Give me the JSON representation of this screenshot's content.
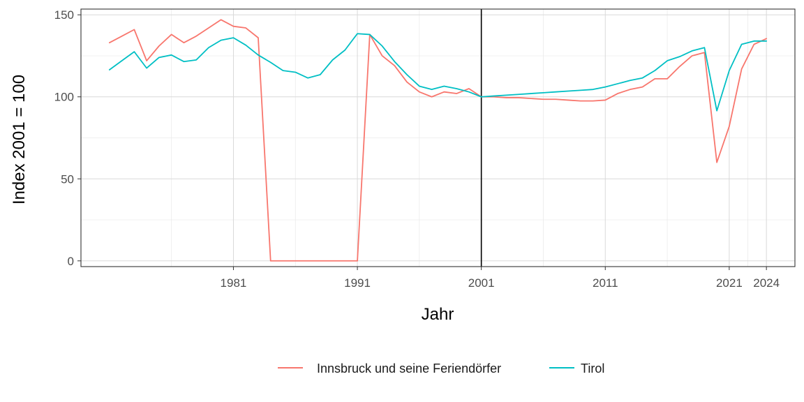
{
  "chart_data": {
    "type": "line",
    "xlabel": "Jahr",
    "ylabel": "Index 2001 = 100",
    "xlim": [
      1968.7,
      2026.3
    ],
    "ylim": [
      -3.5,
      153.5
    ],
    "x_ticks": [
      1981,
      1991,
      2001,
      2011,
      2021,
      2024
    ],
    "y_ticks": [
      0,
      50,
      100,
      150
    ],
    "x_minor_ticks": [
      1976,
      1986,
      1996,
      2006,
      2016,
      2022.5
    ],
    "y_minor_ticks": [
      25,
      75,
      125
    ],
    "grid": true,
    "legend_position": "bottom",
    "reference_line_x": 2001,
    "colors": {
      "Innsbruck und seine Feriendörfer": "#F8766D",
      "Tirol": "#00BFC4",
      "reference_line": "#000000",
      "panel_border": "#333333"
    },
    "series": [
      {
        "name": "Innsbruck und seine Feriendörfer",
        "color": "#F8766D",
        "x": [
          1971,
          1972,
          1973,
          1974,
          1975,
          1976,
          1977,
          1978,
          1979,
          1980,
          1981,
          1982,
          1983,
          1984,
          1985,
          1986,
          1987,
          1988,
          1989,
          1990,
          1991,
          1992,
          1993,
          1994,
          1995,
          1996,
          1997,
          1998,
          1999,
          2000,
          2001,
          2002,
          2003,
          2004,
          2005,
          2006,
          2007,
          2008,
          2009,
          2010,
          2011,
          2012,
          2013,
          2014,
          2015,
          2016,
          2017,
          2018,
          2019,
          2020,
          2021,
          2022,
          2023,
          2024
        ],
        "y": [
          133,
          137,
          141,
          122,
          131,
          138,
          133,
          137,
          142,
          147,
          143,
          142,
          136,
          0,
          0,
          0,
          0,
          0,
          0,
          0,
          0,
          138,
          125,
          119,
          109,
          103,
          100,
          103,
          102,
          105,
          100,
          100,
          99.5,
          99.5,
          99,
          98.5,
          98.5,
          98,
          97.5,
          97.5,
          98,
          102,
          104.5,
          106,
          111,
          111,
          118.5,
          125,
          127,
          60,
          82,
          117,
          132,
          135.5
        ]
      },
      {
        "name": "Tirol",
        "color": "#00BFC4",
        "x": [
          1971,
          1972,
          1973,
          1974,
          1975,
          1976,
          1977,
          1978,
          1979,
          1980,
          1981,
          1982,
          1983,
          1984,
          1985,
          1986,
          1987,
          1988,
          1989,
          1990,
          1991,
          1992,
          1993,
          1994,
          1995,
          1996,
          1997,
          1998,
          1999,
          2000,
          2001,
          2002,
          2003,
          2004,
          2005,
          2006,
          2007,
          2008,
          2009,
          2010,
          2011,
          2012,
          2013,
          2014,
          2015,
          2016,
          2017,
          2018,
          2019,
          2020,
          2021,
          2022,
          2023,
          2024
        ],
        "y": [
          116.5,
          122,
          127.5,
          117.5,
          124,
          125.5,
          121.5,
          122.5,
          130,
          134.5,
          136,
          131.5,
          125.5,
          121,
          116,
          115,
          111.5,
          113.5,
          122.5,
          128.5,
          138.5,
          138,
          131,
          121.5,
          113.5,
          106.5,
          104.5,
          106.5,
          105,
          103,
          100,
          100.5,
          101,
          101.5,
          102,
          102.5,
          103,
          103.5,
          104,
          104.5,
          106,
          108,
          110,
          111.5,
          116,
          122,
          124.5,
          128,
          130,
          91.5,
          116,
          132,
          134,
          134
        ]
      }
    ]
  }
}
